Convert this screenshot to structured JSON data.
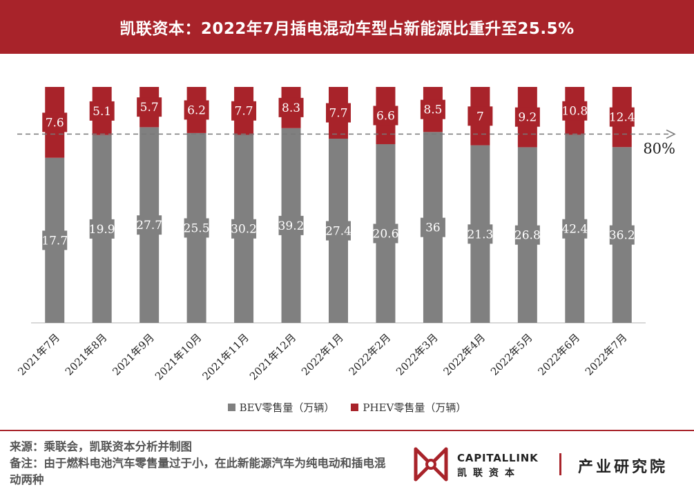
{
  "header": {
    "title": "凯联资本：2022年7月插电混动车型占新能源比重升至25.5%"
  },
  "chart_data": {
    "type": "bar",
    "stacked": "percent",
    "categories": [
      "2021年7月",
      "2021年8月",
      "2021年9月",
      "2021年10月",
      "2021年11月",
      "2021年12月",
      "2022年1月",
      "2022年2月",
      "2022年3月",
      "2022年4月",
      "2022年5月",
      "2022年6月",
      "2022年7月"
    ],
    "series": [
      {
        "name": "BEV零售量（万辆）",
        "values": [
          17.7,
          19.9,
          27.7,
          25.5,
          30.2,
          39.2,
          27.4,
          20.6,
          36,
          21.3,
          26.8,
          42.4,
          36.2
        ],
        "color": "#808080"
      },
      {
        "name": "PHEV零售量（万辆）",
        "values": [
          7.6,
          5.1,
          5.7,
          6.2,
          7.7,
          8.3,
          7.7,
          6.6,
          8.5,
          7,
          9.2,
          10.8,
          12.4
        ],
        "color": "#a8232a"
      }
    ],
    "reference_line": {
      "value": 80,
      "label": "80%",
      "style": "dashed"
    },
    "ylim": [
      0,
      100
    ],
    "legend_position": "bottom",
    "grid": false
  },
  "footer": {
    "source": "来源：乘联会，凯联资本分析并制图",
    "note": "备注：由于燃料电池汽车零售量过于小，在此新能源汽车为纯电动和插电混动两种"
  },
  "brand": {
    "name_en": "CAPITALLINK",
    "name_cn": "凯联资本",
    "institute": "产业研究院"
  }
}
